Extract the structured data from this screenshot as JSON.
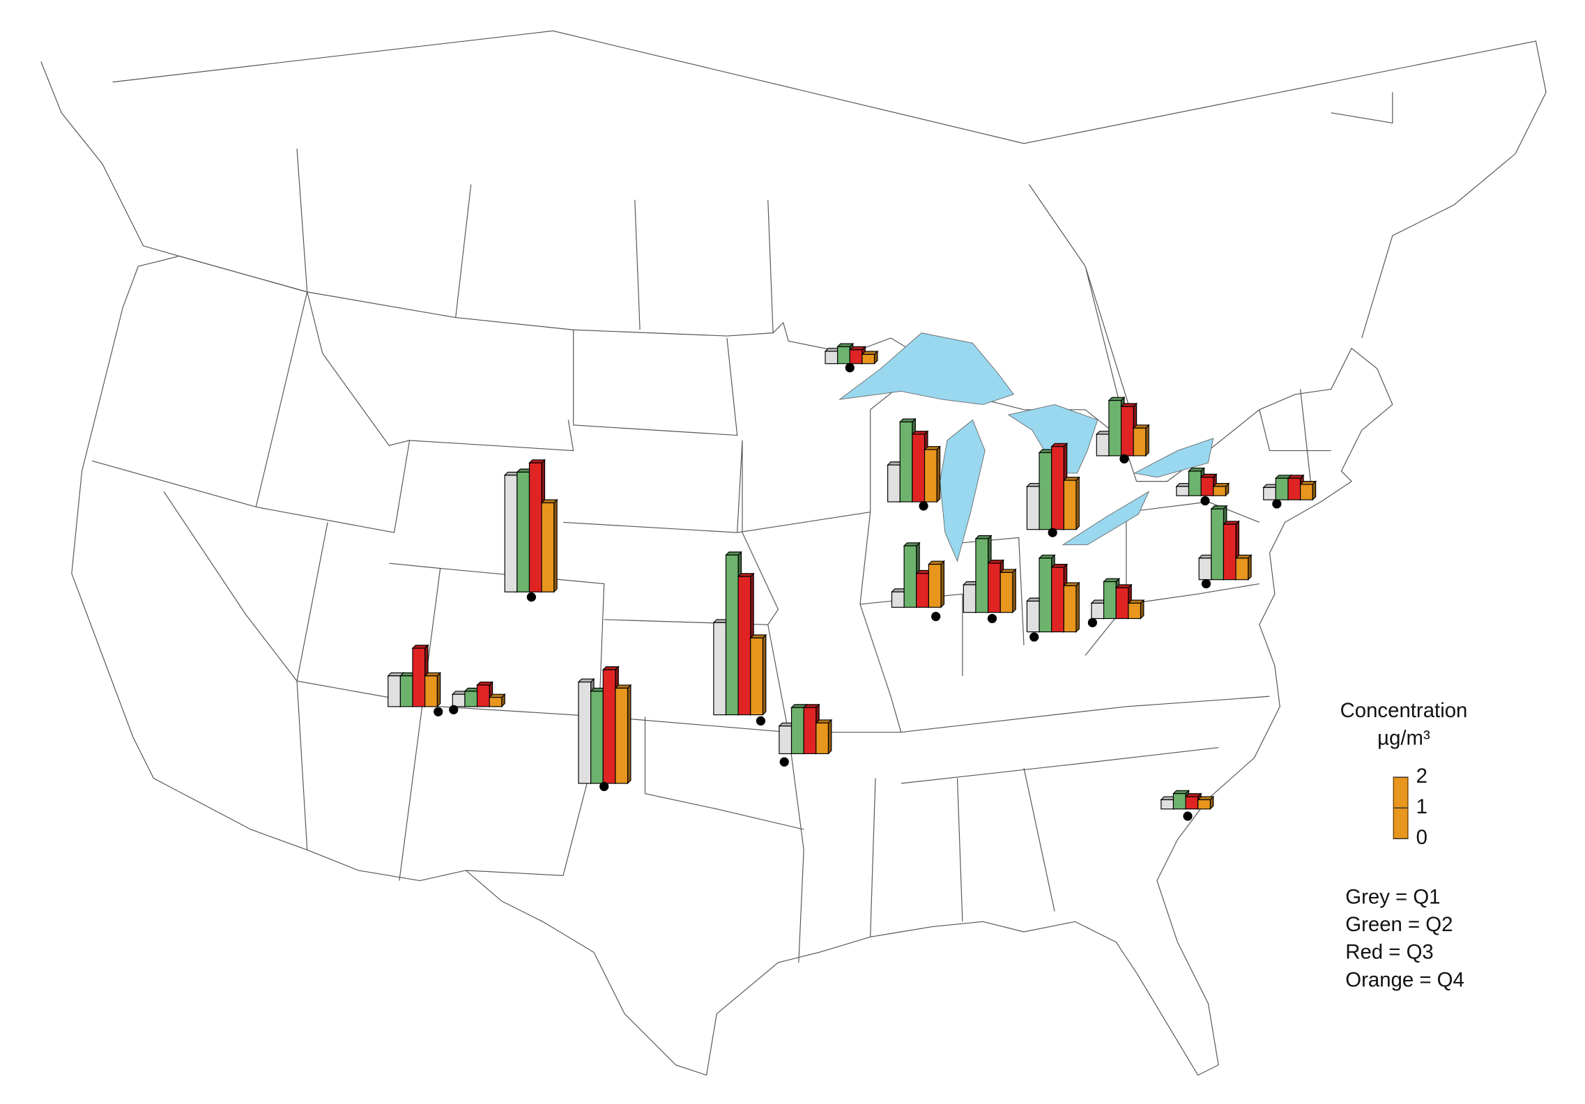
{
  "map": {
    "scale_title": "Concentration",
    "scale_unit": "µg/m³",
    "ylim": [
      0,
      2
    ],
    "yticks": [
      0,
      1,
      2
    ],
    "series": [
      {
        "label": "Grey = Q1",
        "color": "#e0e0e0"
      },
      {
        "label": "Green = Q2",
        "color": "#6db36d"
      },
      {
        "label": "Red = Q3",
        "color": "#e02424"
      },
      {
        "label": "Orange = Q4",
        "color": "#e8961e"
      }
    ],
    "sites": [
      {
        "values": [
          0.4,
          0.55,
          0.45,
          0.3
        ]
      },
      {
        "values": [
          1.2,
          2.6,
          2.2,
          1.7
        ]
      },
      {
        "values": [
          0.7,
          1.8,
          1.6,
          0.9
        ]
      },
      {
        "values": [
          1.4,
          2.5,
          2.7,
          1.6
        ]
      },
      {
        "values": [
          0.3,
          0.8,
          0.6,
          0.3
        ]
      },
      {
        "values": [
          0.4,
          0.7,
          0.7,
          0.5
        ]
      },
      {
        "values": [
          0.7,
          2.3,
          1.8,
          0.7
        ]
      },
      {
        "values": [
          3.8,
          3.9,
          4.2,
          2.9
        ]
      },
      {
        "values": [
          3.0,
          5.2,
          4.5,
          2.5
        ]
      },
      {
        "values": [
          0.5,
          2.0,
          1.1,
          1.4
        ]
      },
      {
        "values": [
          0.9,
          2.4,
          1.6,
          1.3
        ]
      },
      {
        "values": [
          1.0,
          2.4,
          2.1,
          1.5
        ]
      },
      {
        "values": [
          0.5,
          1.2,
          1.0,
          0.5
        ]
      },
      {
        "values": [
          1.0,
          1.0,
          1.9,
          1.0
        ]
      },
      {
        "values": [
          0.4,
          0.5,
          0.7,
          0.3
        ]
      },
      {
        "values": [
          3.3,
          3.0,
          3.7,
          3.1
        ]
      },
      {
        "values": [
          0.9,
          1.5,
          1.5,
          1.0
        ]
      },
      {
        "values": [
          0.3,
          0.5,
          0.4,
          0.3
        ]
      }
    ]
  }
}
